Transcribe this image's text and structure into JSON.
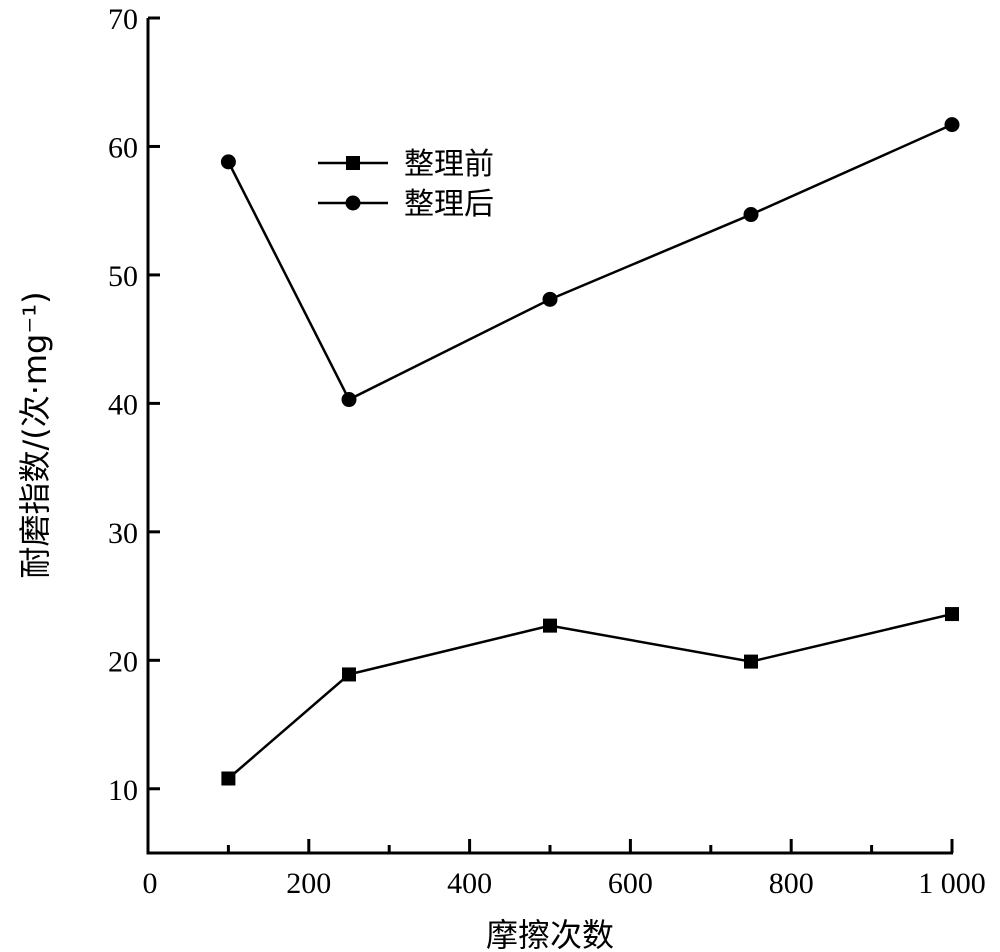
{
  "chart_data": {
    "type": "line",
    "title": "",
    "xlabel": "摩擦次数",
    "ylabel": "耐磨指数/(次·mg⁻¹)",
    "xlim": [
      0,
      1000
    ],
    "ylim": [
      5,
      70
    ],
    "xticks": [
      0,
      200,
      400,
      600,
      800,
      1000
    ],
    "xtick_labels": [
      "0",
      "200",
      "400",
      "600",
      "800",
      "1 000"
    ],
    "xminor_ticks": [
      100,
      300,
      500,
      700,
      900
    ],
    "yticks": [
      10,
      20,
      30,
      40,
      50,
      60,
      70
    ],
    "ytick_labels": [
      "10",
      "20",
      "30",
      "40",
      "50",
      "60",
      "70"
    ],
    "grid": false,
    "legend_position": "top-left",
    "x": [
      100,
      250,
      500,
      750,
      1000
    ],
    "series": [
      {
        "name": "整理前",
        "marker": "square",
        "values": [
          10.8,
          18.9,
          22.7,
          19.9,
          23.6
        ]
      },
      {
        "name": "整理后",
        "marker": "circle",
        "values": [
          58.8,
          40.3,
          48.1,
          54.7,
          61.7
        ]
      }
    ]
  }
}
